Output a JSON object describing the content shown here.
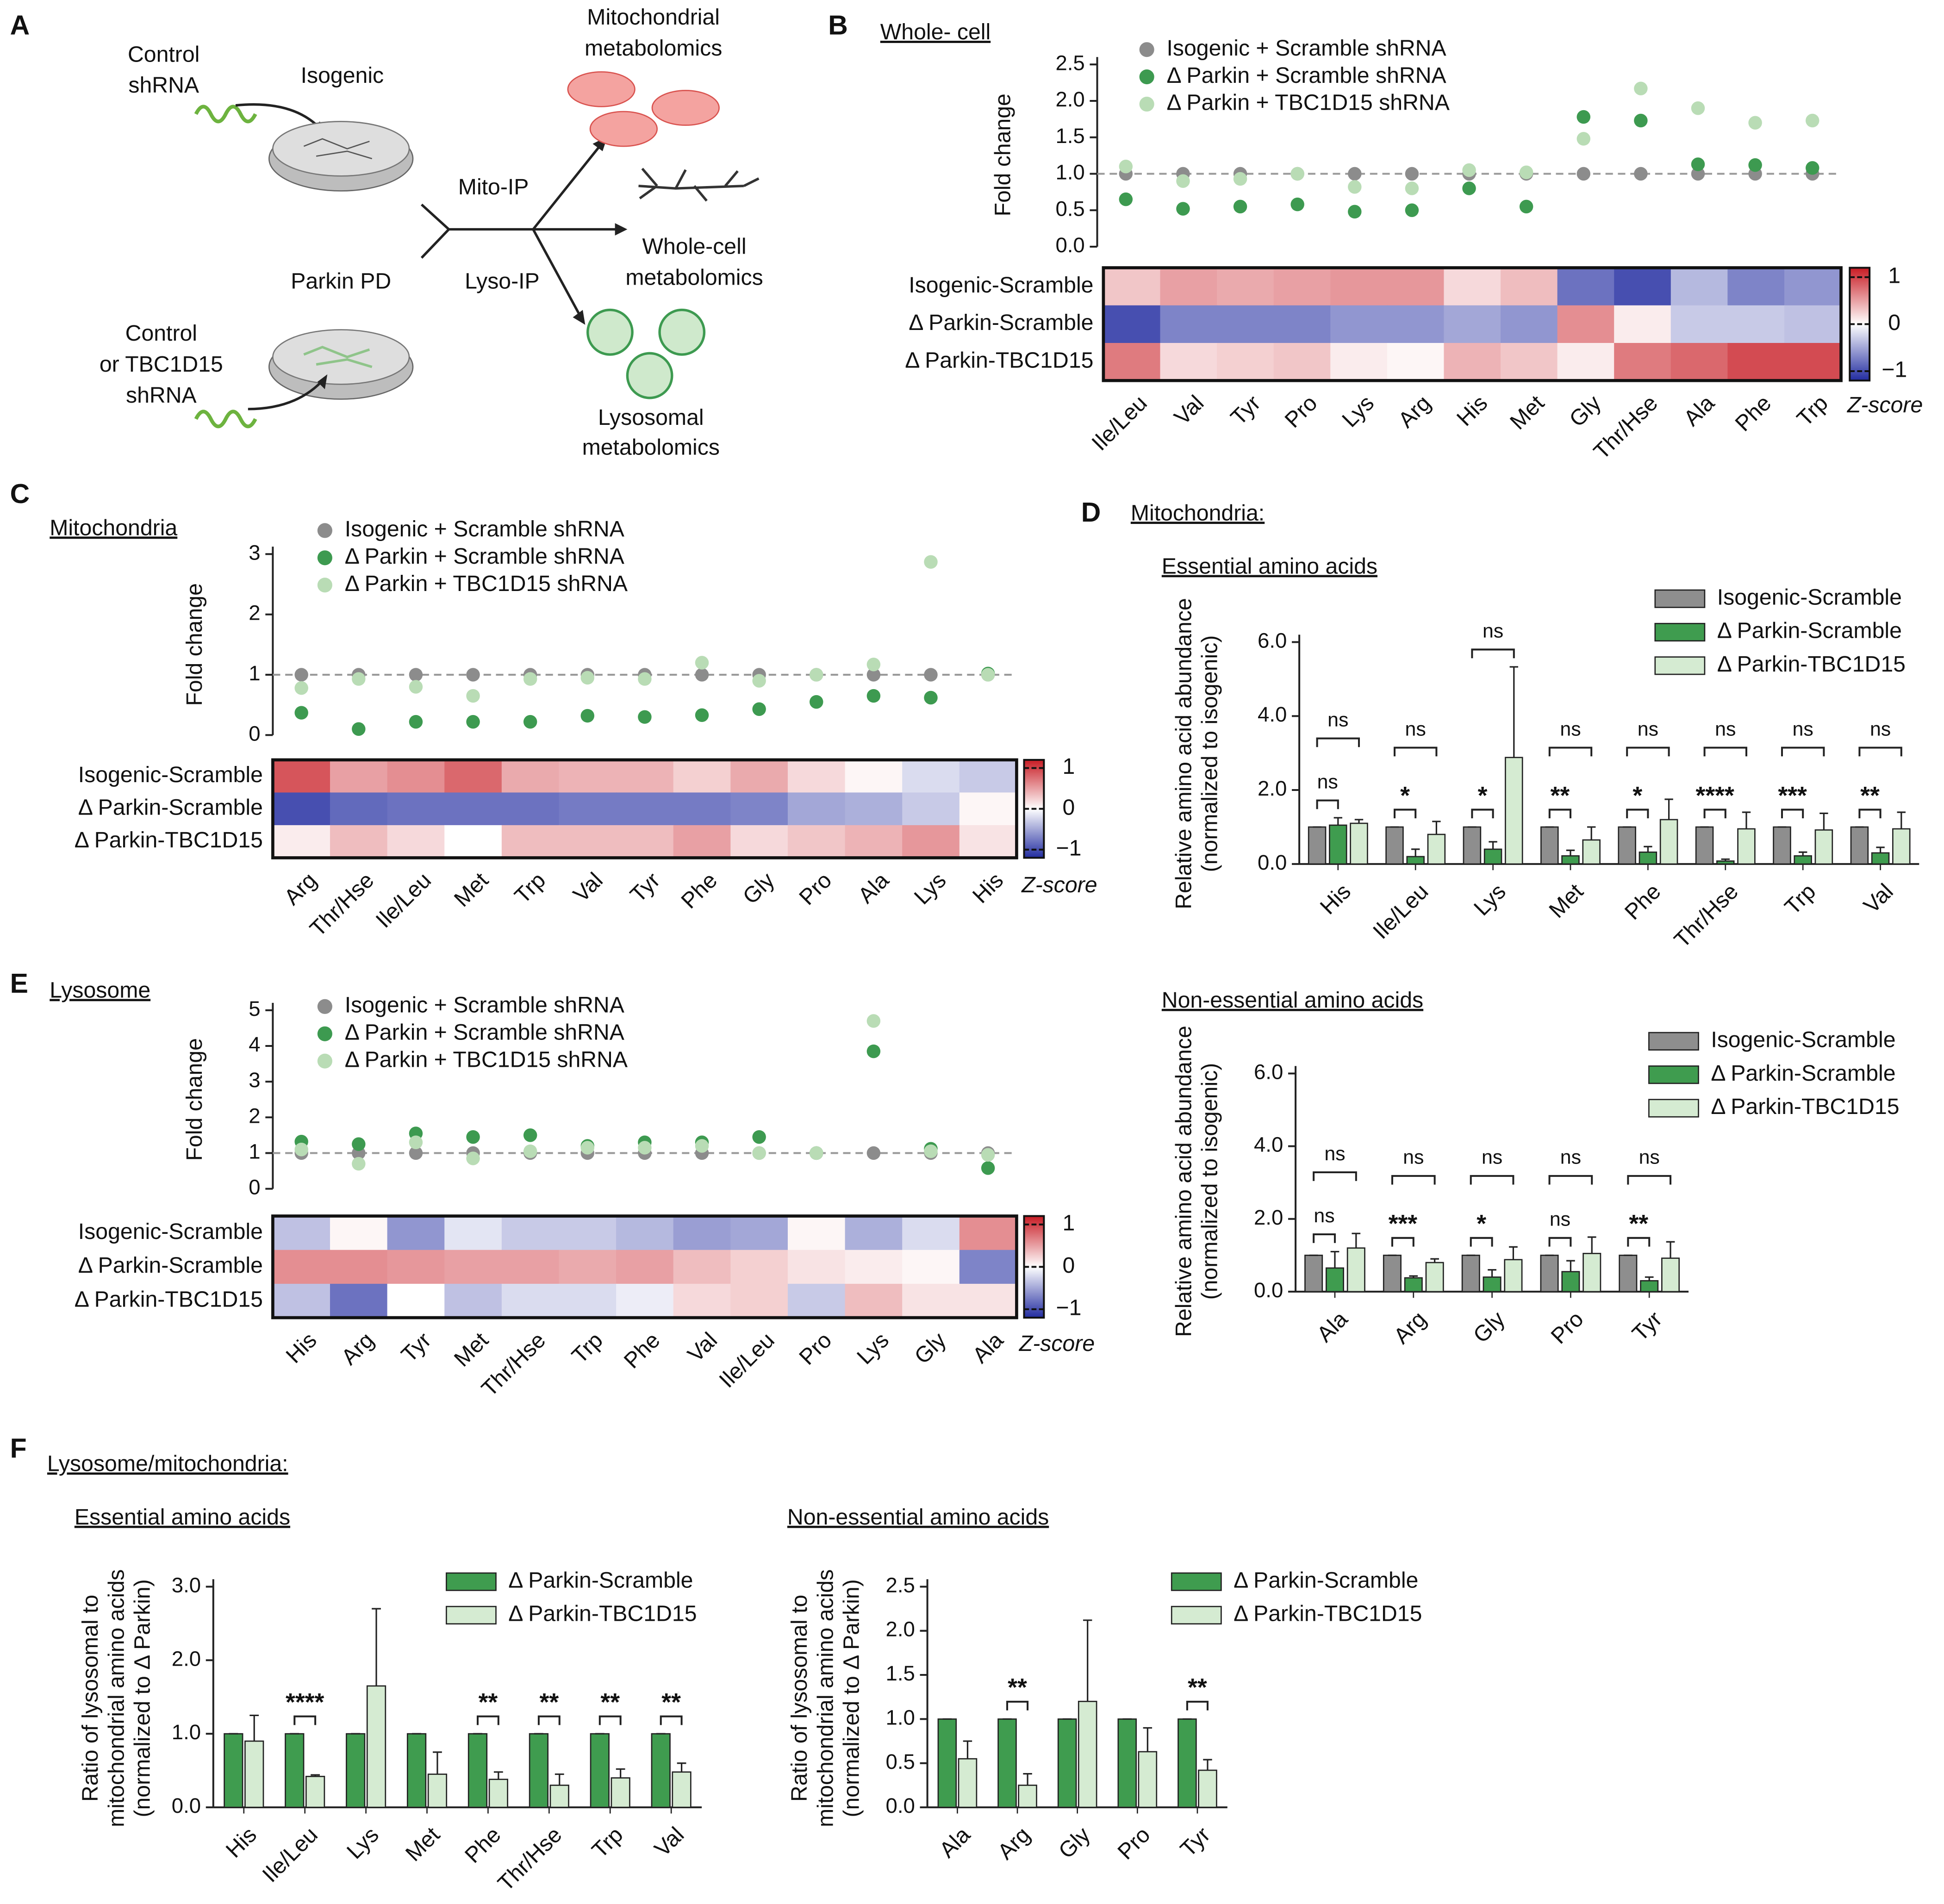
{
  "diagram": {
    "panel_label": "A",
    "control_shrna": [
      "Control",
      "shRNA"
    ],
    "isogenic": "Isogenic",
    "parkin_pd": "Parkin PD",
    "control_tbc": [
      "Control",
      "or TBC1D15",
      "shRNA"
    ],
    "mito_ip": "Mito-IP",
    "lyso_ip": "Lyso-IP",
    "mito_out": [
      "Mitochondrial",
      "metabolomics"
    ],
    "whole_out": [
      "Whole-cell",
      "metabolomics"
    ],
    "lyso_out": [
      "Lysosomal",
      "metabolomics"
    ]
  },
  "chart_data": [
    {
      "type": "dot",
      "panel_label": "B",
      "title": "Whole- cell",
      "ylabel": [
        "Fold change"
      ],
      "ylim": [
        0,
        2.5
      ],
      "yticks": [
        {
          "value": 0,
          "label": "0.0"
        },
        {
          "value": 0.5,
          "label": "0.5"
        },
        {
          "value": 1,
          "label": "1.0"
        },
        {
          "value": 1.5,
          "label": "1.5"
        },
        {
          "value": 2,
          "label": "2.0"
        },
        {
          "value": 2.5,
          "label": "2.5"
        }
      ],
      "reference_line": 1,
      "series": [
        {
          "name": "Isogenic + Scramble shRNA",
          "color": "#8c8c8c",
          "values": [
            1,
            1,
            1,
            1,
            1,
            1,
            1,
            1,
            1,
            1,
            1,
            1,
            1
          ]
        },
        {
          "name": "Δ Parkin + Scramble shRNA",
          "color": "#3d9a50",
          "values": [
            0.65,
            0.52,
            0.55,
            0.58,
            0.48,
            0.5,
            0.8,
            0.55,
            1.78,
            1.73,
            1.13,
            1.12,
            1.08
          ]
        },
        {
          "name": "Δ Parkin + TBC1D15 shRNA",
          "color": "#b9dcb5",
          "values": [
            1.1,
            0.9,
            0.93,
            1.0,
            0.82,
            0.8,
            1.05,
            1.02,
            1.48,
            2.17,
            1.9,
            1.7,
            1.73
          ]
        }
      ]
    },
    {
      "type": "heatmap",
      "rows": [
        "Isogenic-Scramble",
        "Δ Parkin-Scramble",
        "Δ Parkin-TBC1D15"
      ],
      "columns": [
        "Ile/Leu",
        "Val",
        "Tyr",
        "Pro",
        "Lys",
        "Arg",
        "His",
        "Met",
        "Gly",
        "Thr/Hse",
        "Ala",
        "Phe",
        "Trp"
      ],
      "values": [
        [
          0.3,
          0.5,
          0.45,
          0.5,
          0.55,
          0.55,
          0.2,
          0.35,
          -0.8,
          -1.0,
          -0.4,
          -0.7,
          -0.6
        ],
        [
          -1.0,
          -0.7,
          -0.7,
          -0.7,
          -0.6,
          -0.6,
          -0.5,
          -0.6,
          0.6,
          0.1,
          -0.3,
          -0.3,
          -0.35
        ],
        [
          0.7,
          0.2,
          0.25,
          0.3,
          0.1,
          0.05,
          0.4,
          0.3,
          0.1,
          0.7,
          0.8,
          0.95,
          0.95
        ]
      ],
      "zlim": [
        -1.2,
        1.2
      ],
      "zticks": [
        1,
        0,
        {
          "value": -1,
          "label": "−1"
        }
      ],
      "colorbar_label": "Z-score"
    },
    {
      "type": "dot",
      "panel_label": "C",
      "title": "Mitochondria",
      "ylabel": [
        "Fold change"
      ],
      "ylim": [
        0,
        3
      ],
      "yticks": [
        0,
        1,
        2,
        3
      ],
      "reference_line": 1,
      "series": [
        {
          "name": "Isogenic + Scramble shRNA",
          "color": "#8c8c8c",
          "values": [
            1,
            1,
            1,
            1,
            1,
            1,
            1,
            1,
            1,
            1,
            1,
            1,
            1
          ]
        },
        {
          "name": "Δ Parkin + Scramble shRNA",
          "color": "#3d9a50",
          "values": [
            0.37,
            0.1,
            0.22,
            0.22,
            0.22,
            0.32,
            0.3,
            0.33,
            0.43,
            0.55,
            0.65,
            0.62,
            1.02
          ]
        },
        {
          "name": "Δ Parkin + TBC1D15 shRNA",
          "color": "#b9dcb5",
          "values": [
            0.78,
            0.93,
            0.8,
            0.65,
            0.93,
            0.95,
            0.93,
            1.2,
            0.9,
            1.0,
            1.17,
            2.87,
            1.0
          ]
        }
      ]
    },
    {
      "type": "heatmap",
      "rows": [
        "Isogenic-Scramble",
        "Δ Parkin-Scramble",
        "Δ Parkin-TBC1D15"
      ],
      "columns": [
        "Arg",
        "Thr/Hse",
        "Ile/Leu",
        "Met",
        "Trp",
        "Val",
        "Tyr",
        "Phe",
        "Gly",
        "Pro",
        "Ala",
        "Lys",
        "His"
      ],
      "values": [
        [
          0.9,
          0.5,
          0.6,
          0.8,
          0.45,
          0.4,
          0.4,
          0.25,
          0.45,
          0.2,
          0.05,
          -0.2,
          -0.3
        ],
        [
          -1.0,
          -0.85,
          -0.8,
          -0.8,
          -0.8,
          -0.75,
          -0.75,
          -0.75,
          -0.7,
          -0.5,
          -0.45,
          -0.3,
          0.05
        ],
        [
          0.1,
          0.35,
          0.2,
          0.0,
          0.35,
          0.35,
          0.35,
          0.5,
          0.2,
          0.3,
          0.4,
          0.55,
          0.15
        ]
      ],
      "zlim": [
        -1.2,
        1.2
      ],
      "zticks": [
        1,
        0,
        {
          "value": -1,
          "label": "−1"
        }
      ],
      "colorbar_label": "Z-score"
    },
    {
      "type": "dot",
      "panel_label": "E",
      "title": "Lysosome",
      "ylabel": [
        "Fold change"
      ],
      "ylim": [
        0,
        5
      ],
      "yticks": [
        0,
        1,
        2,
        3,
        4,
        5
      ],
      "reference_line": 1,
      "series": [
        {
          "name": "Isogenic + Scramble shRNA",
          "color": "#8c8c8c",
          "values": [
            1,
            1,
            1,
            1,
            1,
            1,
            1,
            1,
            1,
            1,
            1,
            1,
            1
          ]
        },
        {
          "name": "Δ Parkin + Scramble shRNA",
          "color": "#3d9a50",
          "values": [
            1.32,
            1.25,
            1.55,
            1.45,
            1.5,
            1.2,
            1.3,
            1.3,
            1.45,
            1.0,
            3.85,
            1.12,
            0.58
          ]
        },
        {
          "name": "Δ Parkin + TBC1D15 shRNA",
          "color": "#b9dcb5",
          "values": [
            1.1,
            0.7,
            1.3,
            0.85,
            1.05,
            1.15,
            1.15,
            1.2,
            1.0,
            1.0,
            4.7,
            1.05,
            0.95
          ]
        }
      ]
    },
    {
      "type": "heatmap",
      "rows": [
        "Isogenic-Scramble",
        "Δ Parkin-Scramble",
        "Δ Parkin-TBC1D15"
      ],
      "columns": [
        "His",
        "Arg",
        "Tyr",
        "Met",
        "Thr/Hse",
        "Trp",
        "Phe",
        "Val",
        "Ile/Leu",
        "Pro",
        "Lys",
        "Gly",
        "Ala"
      ],
      "values": [
        [
          -0.35,
          0.05,
          -0.6,
          -0.15,
          -0.3,
          -0.3,
          -0.4,
          -0.55,
          -0.5,
          0.05,
          -0.45,
          -0.2,
          0.6
        ],
        [
          0.6,
          0.6,
          0.55,
          0.5,
          0.5,
          0.45,
          0.5,
          0.35,
          0.25,
          0.15,
          0.1,
          0.05,
          -0.7
        ],
        [
          -0.35,
          -0.8,
          0.0,
          -0.35,
          -0.2,
          -0.2,
          -0.1,
          0.2,
          0.25,
          -0.3,
          0.35,
          0.15,
          0.15
        ]
      ],
      "zlim": [
        -1.2,
        1.2
      ],
      "zticks": [
        1,
        0,
        {
          "value": -1,
          "label": "−1"
        }
      ],
      "colorbar_label": "Z-score"
    },
    {
      "type": "bar",
      "panel_label": "D",
      "panel_title": "Mitochondria:",
      "title": "Essential amino acids",
      "ylabel": [
        "Relative amino acid abundance",
        "(normalized to isogenic)"
      ],
      "ylim": [
        0,
        6
      ],
      "yticks": [
        {
          "value": 0,
          "label": "0.0"
        },
        {
          "value": 2,
          "label": "2.0"
        },
        {
          "value": 4,
          "label": "4.0"
        },
        {
          "value": 6,
          "label": "6.0"
        }
      ],
      "categories": [
        "His",
        "Ile/Leu",
        "Lys",
        "Met",
        "Phe",
        "Thr/Hse",
        "Trp",
        "Val"
      ],
      "series": [
        {
          "name": "Isogenic-Scramble",
          "color": "#8e8e8e",
          "values": [
            1,
            1,
            1,
            1,
            1,
            1,
            1,
            1
          ],
          "errors": [
            0,
            0,
            0,
            0,
            0,
            0,
            0,
            0
          ]
        },
        {
          "name": "Δ Parkin-Scramble",
          "color": "#3f9c4f",
          "values": [
            1.05,
            0.2,
            0.4,
            0.22,
            0.32,
            0.08,
            0.22,
            0.3
          ],
          "errors": [
            0.2,
            0.2,
            0.2,
            0.15,
            0.15,
            0.05,
            0.1,
            0.15
          ],
          "significance": [
            "ns",
            "*",
            "*",
            "**",
            "*",
            "****",
            "***",
            "**"
          ]
        },
        {
          "name": "Δ Parkin-TBC1D15",
          "color": "#d5ebd2",
          "values": [
            1.1,
            0.8,
            2.88,
            0.65,
            1.2,
            0.95,
            0.92,
            0.95
          ],
          "errors": [
            0.1,
            0.35,
            2.45,
            0.35,
            0.55,
            0.45,
            0.45,
            0.45
          ],
          "significance": [
            "ns",
            "ns",
            "ns",
            "ns",
            "ns",
            "ns",
            "ns",
            "ns"
          ]
        }
      ]
    },
    {
      "type": "bar",
      "title": "Non-essential amino acids",
      "ylabel": [
        "Relative amino acid abundance",
        "(normalized to isogenic)"
      ],
      "ylim": [
        0,
        6
      ],
      "yticks": [
        {
          "value": 0,
          "label": "0.0"
        },
        {
          "value": 2,
          "label": "2.0"
        },
        {
          "value": 4,
          "label": "4.0"
        },
        {
          "value": 6,
          "label": "6.0"
        }
      ],
      "categories": [
        "Ala",
        "Arg",
        "Gly",
        "Pro",
        "Tyr"
      ],
      "series": [
        {
          "name": "Isogenic-Scramble",
          "color": "#8e8e8e",
          "values": [
            1,
            1,
            1,
            1,
            1
          ],
          "errors": [
            0,
            0,
            0,
            0,
            0
          ]
        },
        {
          "name": "Δ Parkin-Scramble",
          "color": "#3f9c4f",
          "values": [
            0.65,
            0.38,
            0.4,
            0.55,
            0.3
          ],
          "errors": [
            0.45,
            0.05,
            0.2,
            0.3,
            0.1
          ],
          "significance": [
            "ns",
            "***",
            "*",
            "ns",
            "**"
          ]
        },
        {
          "name": "Δ Parkin-TBC1D15",
          "color": "#d5ebd2",
          "values": [
            1.2,
            0.8,
            0.88,
            1.05,
            0.92
          ],
          "errors": [
            0.4,
            0.1,
            0.35,
            0.45,
            0.45
          ],
          "significance": [
            "ns",
            "ns",
            "ns",
            "ns",
            "ns"
          ]
        }
      ]
    },
    {
      "type": "bar",
      "panel_label": "F",
      "panel_title": "Lysosome/mitochondria:",
      "title": "Essential amino acids",
      "ylabel": [
        "Ratio of lysosomal to",
        "mitochondrial amino acids",
        "(normalized to Δ Parkin)"
      ],
      "ylim": [
        0,
        3
      ],
      "yticks": [
        {
          "value": 0,
          "label": "0.0"
        },
        {
          "value": 1,
          "label": "1.0"
        },
        {
          "value": 2,
          "label": "2.0"
        },
        {
          "value": 3,
          "label": "3.0"
        }
      ],
      "categories": [
        "His",
        "Ile/Leu",
        "Lys",
        "Met",
        "Phe",
        "Thr/Hse",
        "Trp",
        "Val"
      ],
      "series": [
        {
          "name": "Δ Parkin-Scramble",
          "color": "#3f9c4f",
          "values": [
            1,
            1,
            1,
            1,
            1,
            1,
            1,
            1
          ],
          "errors": [
            0,
            0,
            0,
            0,
            0,
            0,
            0,
            0
          ]
        },
        {
          "name": "Δ Parkin-TBC1D15",
          "color": "#d5ebd2",
          "values": [
            0.9,
            0.42,
            1.65,
            0.45,
            0.38,
            0.3,
            0.4,
            0.48
          ],
          "errors": [
            0.35,
            0.02,
            1.05,
            0.3,
            0.1,
            0.15,
            0.12,
            0.12
          ],
          "significance": [
            null,
            "****",
            null,
            null,
            "**",
            "**",
            "**",
            "**"
          ]
        }
      ]
    },
    {
      "type": "bar",
      "title": "Non-essential amino acids",
      "ylabel": [
        "Ratio of lysosomal to",
        "mitochondrial amino acids",
        "(normalized to Δ Parkin)"
      ],
      "ylim": [
        0,
        2.5
      ],
      "yticks": [
        {
          "value": 0,
          "label": "0.0"
        },
        {
          "value": 0.5,
          "label": "0.5"
        },
        {
          "value": 1,
          "label": "1.0"
        },
        {
          "value": 1.5,
          "label": "1.5"
        },
        {
          "value": 2,
          "label": "2.0"
        },
        {
          "value": 2.5,
          "label": "2.5"
        }
      ],
      "categories": [
        "Ala",
        "Arg",
        "Gly",
        "Pro",
        "Tyr"
      ],
      "series": [
        {
          "name": "Δ Parkin-Scramble",
          "color": "#3f9c4f",
          "values": [
            1,
            1,
            1,
            1,
            1
          ],
          "errors": [
            0,
            0,
            0,
            0,
            0
          ]
        },
        {
          "name": "Δ Parkin-TBC1D15",
          "color": "#d5ebd2",
          "values": [
            0.55,
            0.25,
            1.2,
            0.63,
            0.42
          ],
          "errors": [
            0.2,
            0.13,
            0.92,
            0.27,
            0.12
          ],
          "significance": [
            null,
            "**",
            null,
            null,
            "**"
          ]
        }
      ]
    }
  ]
}
